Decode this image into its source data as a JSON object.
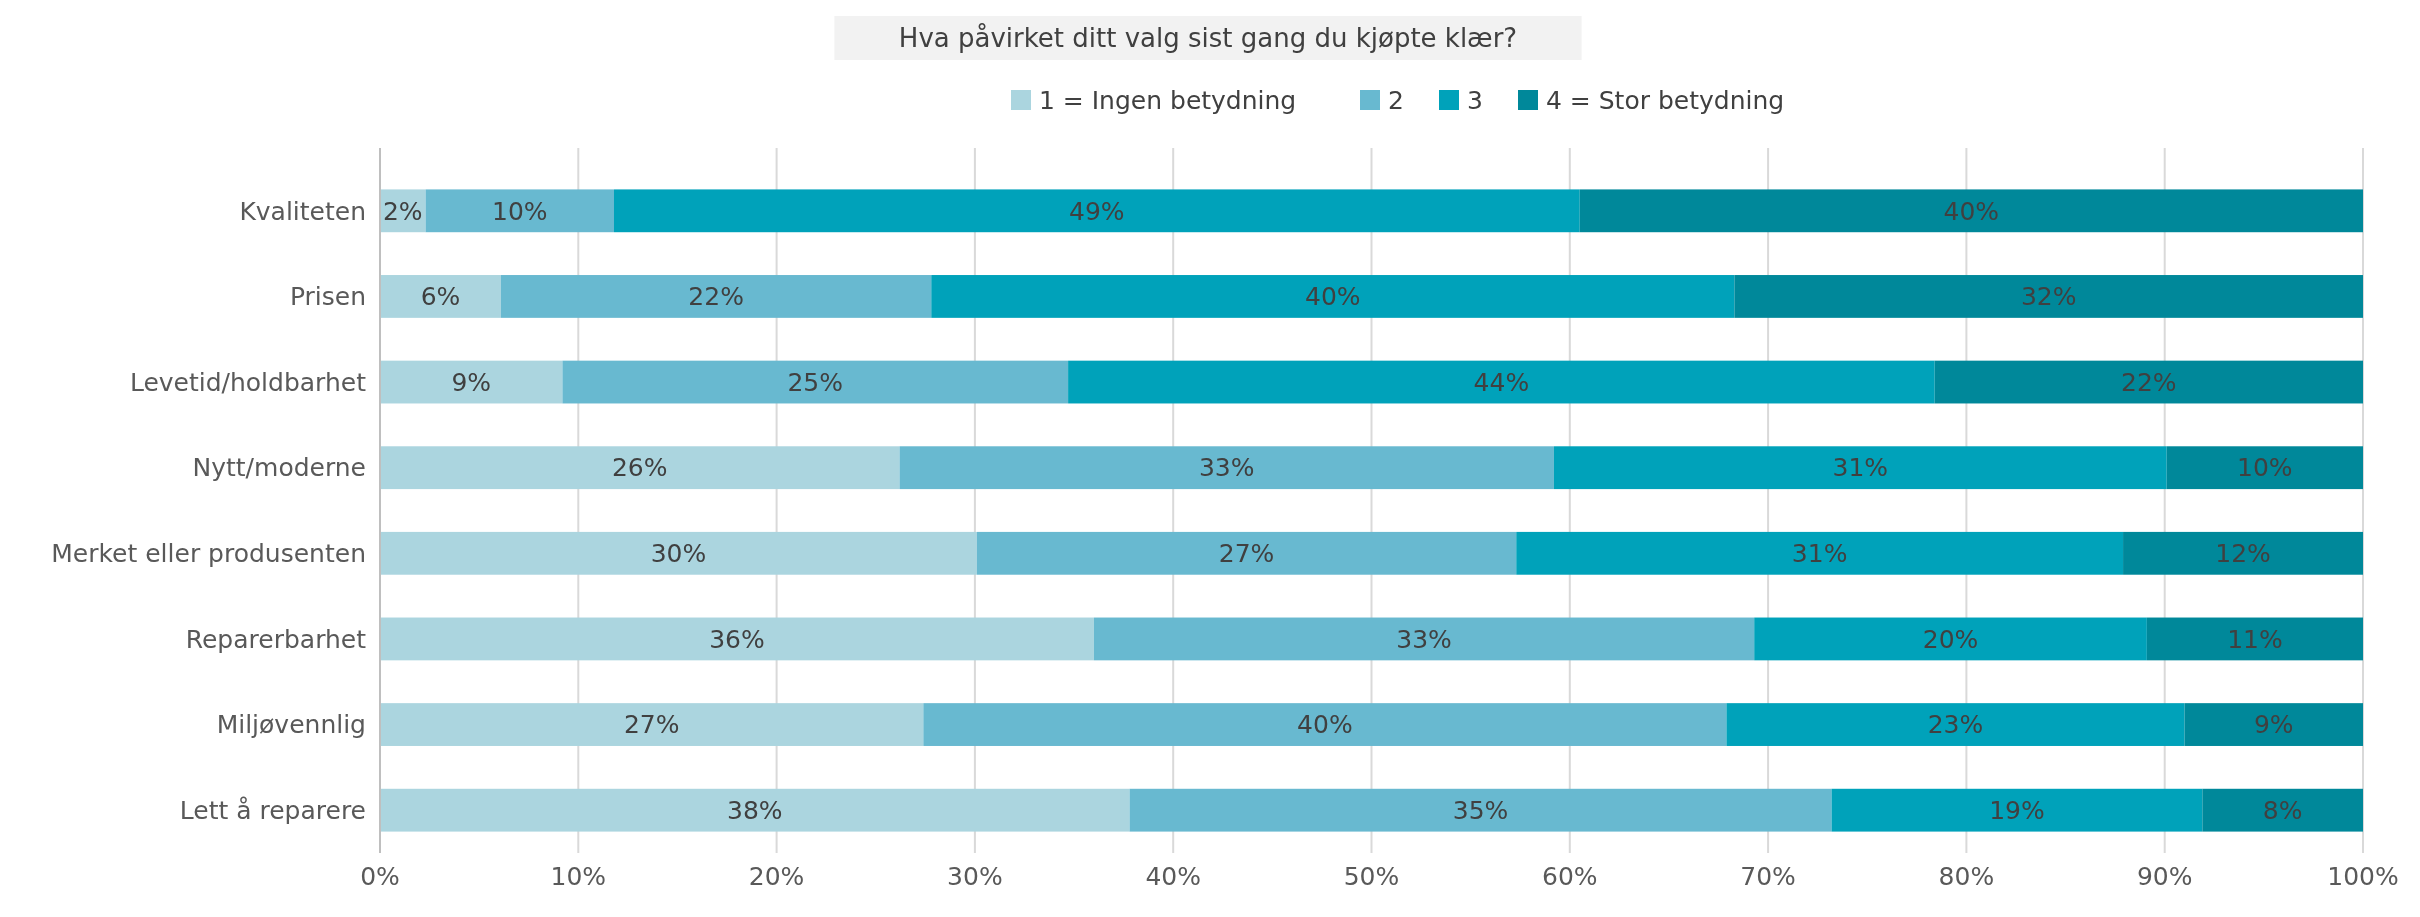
{
  "chart_data": {
    "type": "bar",
    "orientation": "horizontal",
    "stacked": true,
    "title": "Hva påvirket ditt valg sist gang du kjøpte klær?",
    "categories": [
      "Kvaliteten",
      "Prisen",
      "Levetid/holdbarhet",
      "Nytt/moderne",
      "Merket eller produsenten",
      "Reparerbarhet",
      "Miljøvennlig",
      "Lett å reparere"
    ],
    "series": [
      {
        "name": "1 = Ingen betydning",
        "color": "#abd5df",
        "values": [
          2.3,
          6.1,
          9.2,
          26.2,
          30.1,
          36.0,
          27.4,
          37.8
        ],
        "value_labels": [
          "2%",
          "6%",
          "9%",
          "26%",
          "30%",
          "36%",
          "27%",
          "38%"
        ]
      },
      {
        "name": "2",
        "color": "#68b9d0",
        "values": [
          9.5,
          21.7,
          25.5,
          33.0,
          27.2,
          33.3,
          40.5,
          35.4
        ],
        "value_labels": [
          "10%",
          "22%",
          "25%",
          "33%",
          "27%",
          "33%",
          "40%",
          "35%"
        ]
      },
      {
        "name": "3",
        "color": "#00a2ba",
        "values": [
          48.7,
          40.5,
          43.7,
          30.9,
          30.6,
          19.8,
          23.1,
          18.7
        ],
        "value_labels": [
          "49%",
          "40%",
          "44%",
          "31%",
          "31%",
          "20%",
          "23%",
          "19%"
        ]
      },
      {
        "name": "4 = Stor betydning",
        "color": "#00889a",
        "values": [
          39.5,
          31.7,
          21.6,
          9.9,
          12.1,
          10.9,
          9.0,
          8.1
        ],
        "value_labels": [
          "40%",
          "32%",
          "22%",
          "10%",
          "12%",
          "11%",
          "9%",
          "8%"
        ]
      }
    ],
    "xlim": [
      0,
      100
    ],
    "xticks": [
      {
        "value": 0,
        "label": "0%"
      },
      {
        "value": 10,
        "label": "10%"
      },
      {
        "value": 20,
        "label": "20%"
      },
      {
        "value": 30,
        "label": "30%"
      },
      {
        "value": 40,
        "label": "40%"
      },
      {
        "value": 50,
        "label": "50%"
      },
      {
        "value": 60,
        "label": "60%"
      },
      {
        "value": 70,
        "label": "70%"
      },
      {
        "value": 80,
        "label": "80%"
      },
      {
        "value": 90,
        "label": "90%"
      },
      {
        "value": 100,
        "label": "100%"
      }
    ],
    "grid": "x",
    "legend": "top"
  }
}
